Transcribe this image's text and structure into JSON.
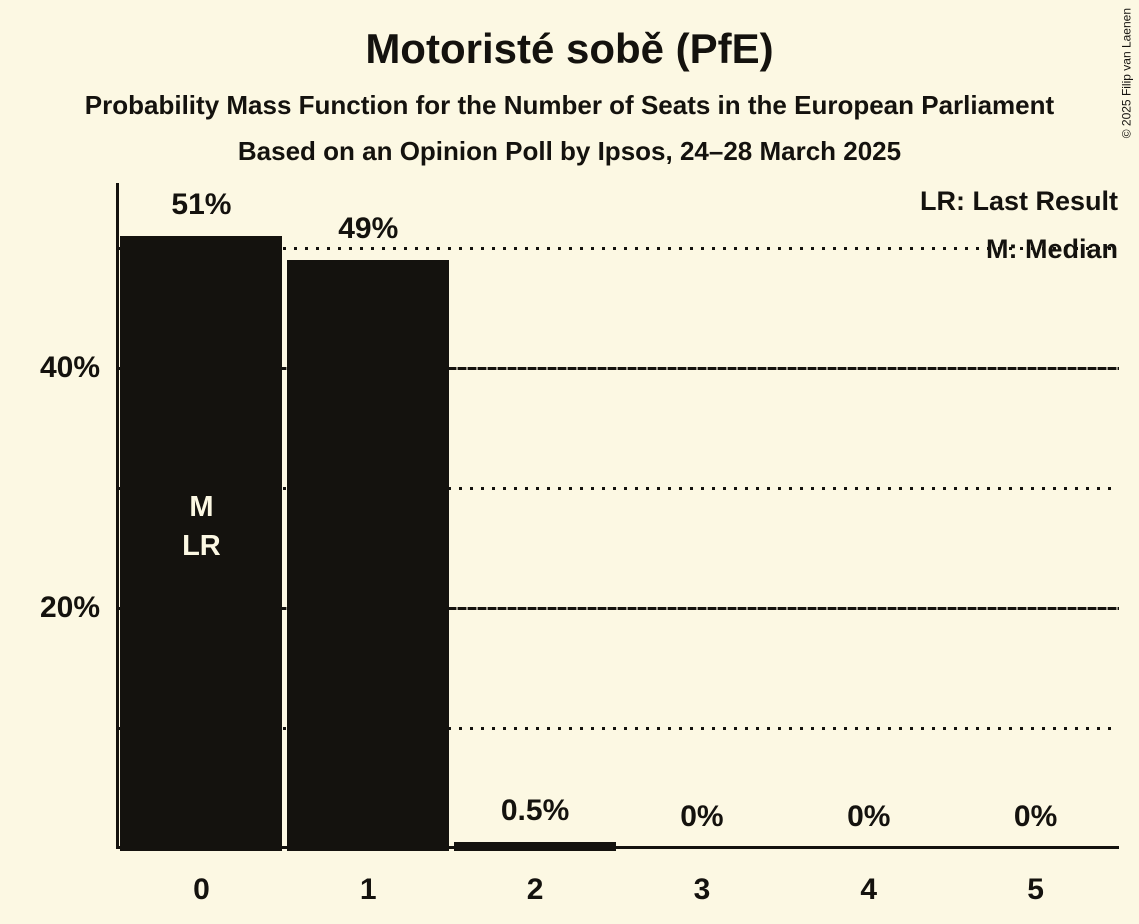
{
  "chart_data": {
    "type": "bar",
    "title": "Motoristé sobě (PfE)",
    "subtitle": "Probability Mass Function for the Number of Seats in the European Parliament",
    "source_line": "Based on an Opinion Poll by Ipsos, 24–28 March 2025",
    "xlabel": "",
    "ylabel": "",
    "categories": [
      "0",
      "1",
      "2",
      "3",
      "4",
      "5"
    ],
    "values": [
      51,
      49,
      0.5,
      0,
      0,
      0
    ],
    "value_labels": [
      "51%",
      "49%",
      "0.5%",
      "0%",
      "0%",
      "0%"
    ],
    "median_seats": "0",
    "last_result_seats": "0",
    "bar_annotation": {
      "median": "M",
      "last_result": "LR"
    },
    "y_axis": {
      "tick_labels": [
        "40%",
        "20%"
      ],
      "tick_values": [
        40,
        20
      ],
      "ylim": [
        0,
        55.3
      ],
      "solid_gridlines": [
        40,
        20
      ],
      "dotted_gridlines": [
        50,
        30,
        10
      ],
      "grid": "on"
    },
    "legend": {
      "position": "top-right",
      "entries": [
        {
          "key": "LR",
          "label": "LR: Last Result"
        },
        {
          "key": "M",
          "label": "M: Median"
        }
      ]
    },
    "copyright": "© 2025 Filip van Laenen",
    "colors": {
      "background": "#FCF8E3",
      "bar": "#14120E",
      "text": "#14120E",
      "bar_annotation_text": "#FCF8E3"
    }
  }
}
